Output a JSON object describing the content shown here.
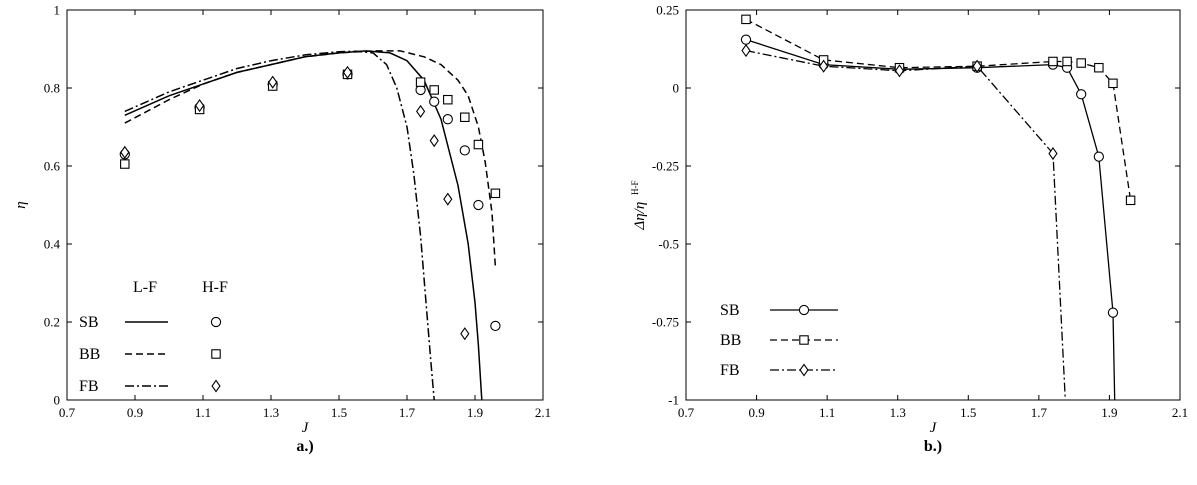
{
  "chart_data": [
    {
      "type": "line",
      "panel_label": "a.)",
      "xlabel": "J",
      "ylabel": "η",
      "xlim": [
        0.7,
        2.1
      ],
      "ylim": [
        0,
        1
      ],
      "xticks": [
        "0.7",
        "0.9",
        "1.1",
        "1.3",
        "1.5",
        "1.7",
        "1.9",
        "2.1"
      ],
      "yticks": [
        "0",
        "0.2",
        "0.4",
        "0.6",
        "0.8",
        "1"
      ],
      "legend": {
        "placement": "bottom-left",
        "col_headers": [
          "L-F",
          "H-F"
        ],
        "rows": [
          {
            "label": "SB",
            "line": "solid",
            "marker": "circle"
          },
          {
            "label": "BB",
            "line": "dashed",
            "marker": "square"
          },
          {
            "label": "FB",
            "line": "dashdot",
            "marker": "diamond"
          }
        ]
      },
      "series": [
        {
          "kind": "line",
          "style": "solid",
          "legend_row": "SB",
          "x": [
            0.87,
            1.0,
            1.1,
            1.2,
            1.3,
            1.4,
            1.5,
            1.58,
            1.65,
            1.7,
            1.75,
            1.8,
            1.85,
            1.88,
            1.9,
            1.91,
            1.92
          ],
          "y": [
            0.73,
            0.78,
            0.81,
            0.84,
            0.86,
            0.88,
            0.89,
            0.895,
            0.89,
            0.87,
            0.82,
            0.72,
            0.55,
            0.4,
            0.25,
            0.14,
            0.0
          ]
        },
        {
          "kind": "line",
          "style": "dashed",
          "legend_row": "BB",
          "x": [
            0.87,
            1.0,
            1.1,
            1.2,
            1.3,
            1.4,
            1.5,
            1.6,
            1.68,
            1.75,
            1.8,
            1.85,
            1.88,
            1.91,
            1.93,
            1.95,
            1.96
          ],
          "y": [
            0.71,
            0.77,
            0.81,
            0.84,
            0.86,
            0.88,
            0.89,
            0.895,
            0.895,
            0.88,
            0.86,
            0.82,
            0.78,
            0.7,
            0.61,
            0.48,
            0.34
          ]
        },
        {
          "kind": "line",
          "style": "dashdot",
          "legend_row": "FB",
          "x": [
            0.87,
            1.0,
            1.1,
            1.2,
            1.3,
            1.4,
            1.5,
            1.55,
            1.6,
            1.64,
            1.67,
            1.7,
            1.72,
            1.74,
            1.755,
            1.77,
            1.78
          ],
          "y": [
            0.74,
            0.79,
            0.82,
            0.85,
            0.87,
            0.885,
            0.893,
            0.894,
            0.89,
            0.86,
            0.8,
            0.7,
            0.58,
            0.42,
            0.26,
            0.1,
            0.0
          ]
        },
        {
          "kind": "markers",
          "marker": "circle",
          "legend_row": "SB",
          "x": [
            0.87,
            1.09,
            1.305,
            1.525,
            1.74,
            1.78,
            1.82,
            1.87,
            1.91,
            1.96
          ],
          "y": [
            0.63,
            0.75,
            0.81,
            0.835,
            0.795,
            0.765,
            0.72,
            0.64,
            0.5,
            0.19
          ]
        },
        {
          "kind": "markers",
          "marker": "square",
          "legend_row": "BB",
          "x": [
            0.87,
            1.09,
            1.305,
            1.525,
            1.74,
            1.78,
            1.82,
            1.87,
            1.91,
            1.96
          ],
          "y": [
            0.605,
            0.745,
            0.805,
            0.835,
            0.815,
            0.795,
            0.77,
            0.725,
            0.655,
            0.53
          ]
        },
        {
          "kind": "markers",
          "marker": "diamond",
          "legend_row": "FB",
          "x": [
            0.87,
            1.09,
            1.305,
            1.525,
            1.74,
            1.78,
            1.82,
            1.87
          ],
          "y": [
            0.635,
            0.755,
            0.815,
            0.84,
            0.74,
            0.665,
            0.515,
            0.17
          ]
        }
      ]
    },
    {
      "type": "line",
      "panel_label": "b.)",
      "xlabel": "J",
      "ylabel": "Δη/η",
      "ylabel_superscript": "H-F",
      "xlim": [
        0.7,
        2.1
      ],
      "ylim": [
        -1,
        0.25
      ],
      "xticks": [
        "0.7",
        "0.9",
        "1.1",
        "1.3",
        "1.5",
        "1.7",
        "1.9",
        "2.1"
      ],
      "yticks": [
        "-1",
        "-0.75",
        "-0.5",
        "-0.25",
        "0",
        "0.25"
      ],
      "legend": {
        "placement": "bottom-left",
        "rows": [
          {
            "label": "SB",
            "line": "solid",
            "marker": "circle"
          },
          {
            "label": "BB",
            "line": "dashed",
            "marker": "square"
          },
          {
            "label": "FB",
            "line": "dashdot",
            "marker": "diamond"
          }
        ]
      },
      "series": [
        {
          "name": "SB",
          "style": "solid",
          "marker": "circle",
          "x": [
            0.87,
            1.09,
            1.305,
            1.525,
            1.74,
            1.78,
            1.82,
            1.87,
            1.91,
            1.915
          ],
          "y": [
            0.155,
            0.075,
            0.06,
            0.065,
            0.075,
            0.065,
            -0.02,
            -0.22,
            -0.72,
            -1.0
          ]
        },
        {
          "name": "BB",
          "style": "dashed",
          "marker": "square",
          "x": [
            0.87,
            1.09,
            1.305,
            1.525,
            1.74,
            1.78,
            1.82,
            1.87,
            1.91,
            1.96
          ],
          "y": [
            0.22,
            0.09,
            0.065,
            0.07,
            0.085,
            0.085,
            0.08,
            0.065,
            0.015,
            -0.36
          ]
        },
        {
          "name": "FB",
          "style": "dashdot",
          "marker": "diamond",
          "x": [
            0.87,
            1.09,
            1.305,
            1.525,
            1.74,
            1.775
          ],
          "y": [
            0.12,
            0.07,
            0.055,
            0.07,
            -0.21,
            -1.0
          ]
        }
      ]
    }
  ]
}
